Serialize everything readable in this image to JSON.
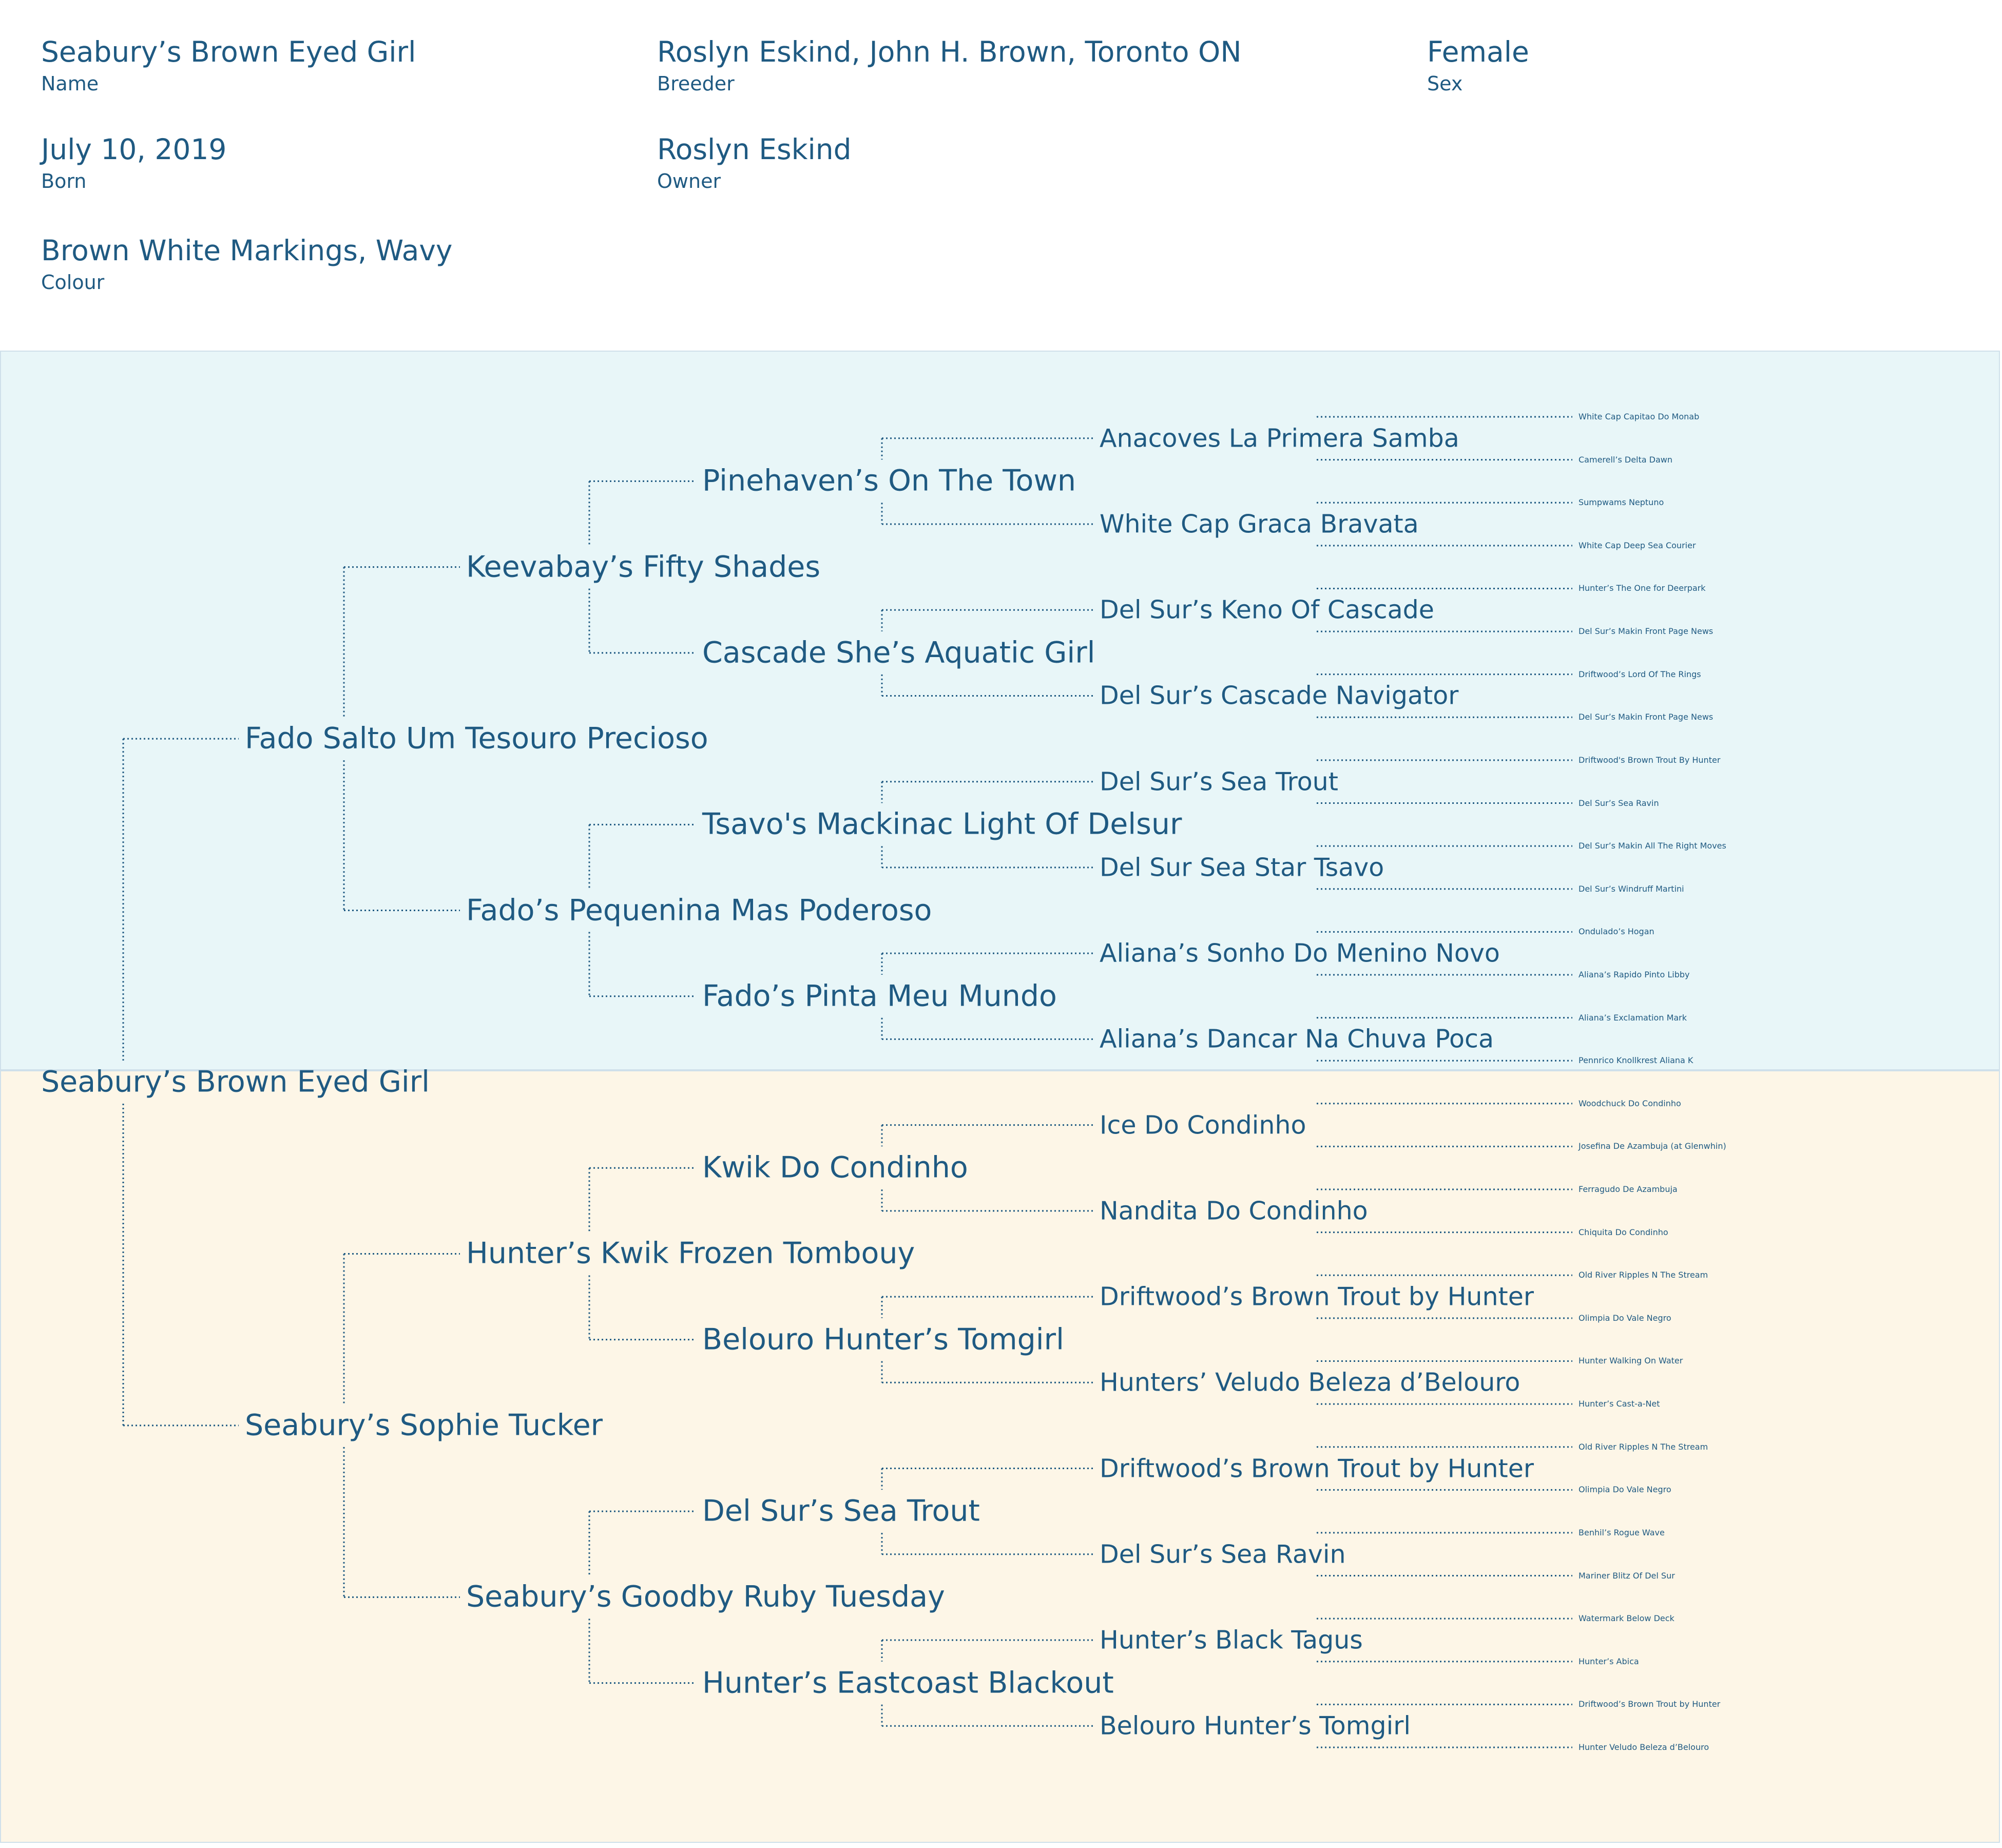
{
  "header": {
    "name": {
      "value": "Seabury’s Brown Eyed Girl",
      "label": "Name"
    },
    "breeder": {
      "value": "Roslyn Eskind, John H. Brown, Toronto ON",
      "label": "Breeder"
    },
    "sex": {
      "value": "Female",
      "label": "Sex"
    },
    "born": {
      "value": "July 10, 2019",
      "label": "Born"
    },
    "owner": {
      "value": "Roslyn Eskind",
      "label": "Owner"
    },
    "colour": {
      "value": "Brown White Markings, Wavy",
      "label": "Colour"
    }
  },
  "colors": {
    "text": "#1f5a82",
    "sire_panel": "#e8f6f8",
    "dam_panel": "#fdf6e7",
    "panel_border": "#cfe0ea",
    "connector": "#1f5a82"
  },
  "pedigree": {
    "subject": "Seabury’s Brown Eyed Girl",
    "sire": "Fado Salto Um Tesouro Precioso",
    "dam": "Seabury’s Sophie Tucker",
    "grandparents": [
      "Keevabay’s Fifty Shades",
      "Fado’s Pequenina Mas Poderoso",
      "Hunter’s Kwik Frozen Tombouy",
      "Seabury’s Goodby Ruby Tuesday"
    ],
    "great_grandparents": [
      "Pinehaven’s On The Town",
      "Cascade She’s Aquatic Girl",
      "Tsavo's Mackinac Light Of Delsur",
      "Fado’s Pinta Meu Mundo",
      "Kwik Do Condinho",
      "Belouro Hunter’s Tomgirl",
      "Del Sur’s Sea Trout",
      "Hunter’s Eastcoast Blackout"
    ],
    "great_great_grandparents": [
      "Anacoves La Primera Samba",
      "White Cap Graca Bravata",
      "Del Sur’s Keno Of Cascade",
      "Del Sur’s Cascade Navigator",
      "Del Sur’s Sea Trout",
      "Del Sur Sea Star Tsavo",
      "Aliana’s Sonho Do Menino Novo",
      "Aliana’s Dancar Na Chuva Poca",
      "Ice Do Condinho",
      "Nandita Do Condinho",
      "Driftwood’s Brown Trout by Hunter",
      "Hunters’ Veludo Beleza d’Belouro",
      "Driftwood’s Brown Trout by Hunter",
      "Del Sur’s Sea Ravin",
      "Hunter’s Black Tagus",
      "Belouro Hunter’s Tomgirl"
    ],
    "great_great_great_grandparents": [
      "White Cap Capitao Do Monab",
      "Camerell’s Delta Dawn",
      "Sumpwams Neptuno",
      "White Cap Deep Sea Courier",
      "Hunter’s The One for Deerpark",
      "Del Sur’s Makin Front Page News",
      "Driftwood’s Lord Of The Rings",
      "Del Sur’s Makin Front Page News",
      "Driftwood's Brown Trout By Hunter",
      "Del Sur’s Sea Ravin",
      "Del Sur’s Makin All The Right Moves",
      "Del Sur’s Windruff Martini",
      "Ondulado’s Hogan",
      "Aliana’s Rapido Pinto Libby",
      "Aliana’s Exclamation Mark",
      "Pennrico Knollkrest Aliana K",
      "Woodchuck Do Condinho",
      "Josefina De Azambuja (at Glenwhin)",
      "Ferragudo De Azambuja",
      "Chiquita Do Condinho",
      "Old River Ripples N The Stream",
      "Olimpia Do Vale Negro",
      "Hunter Walking On Water",
      "Hunter’s Cast-a-Net",
      "Old River Ripples N The Stream",
      "Olimpia Do Vale Negro",
      "Benhil’s Rogue Wave",
      "Mariner Blitz Of Del Sur",
      "Watermark Below Deck",
      "Hunter’s Abica",
      "Driftwood’s Brown Trout by Hunter",
      "Hunter Veludo Beleza d’Belouro"
    ]
  }
}
